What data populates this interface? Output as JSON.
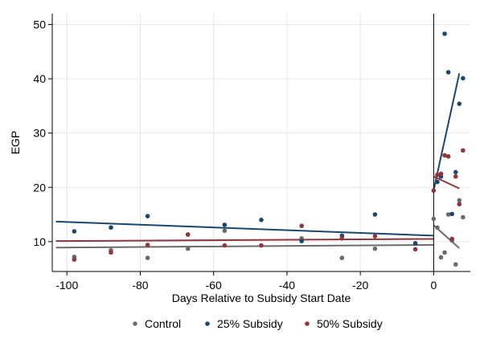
{
  "chart_data": {
    "type": "scatter",
    "title": "",
    "xlabel": "Days Relative to Subsidy Start Date",
    "ylabel": "EGP",
    "xlim": [
      -104,
      10
    ],
    "ylim": [
      4.5,
      52
    ],
    "xticks": [
      -100,
      -80,
      -60,
      -40,
      -20,
      0
    ],
    "xtick_labels": [
      "-100",
      "-80",
      "-60",
      "-40",
      "-20",
      "0"
    ],
    "yticks": [
      10,
      20,
      30,
      40,
      50
    ],
    "ytick_labels": [
      "10",
      "20",
      "30",
      "40",
      "50"
    ],
    "grid": true,
    "vline_x": 0,
    "legend": {
      "placement": "bottom",
      "entries": [
        "Control",
        "25% Subsidy",
        "50% Subsidy"
      ]
    },
    "series": [
      {
        "name": "Control",
        "color": "#6b6b6b",
        "points": [
          [
            -98,
            7.2
          ],
          [
            -88,
            8.4
          ],
          [
            -78,
            7.0
          ],
          [
            -67,
            8.7
          ],
          [
            -57,
            12.0
          ],
          [
            -36,
            10.6
          ],
          [
            -25,
            7.0
          ],
          [
            -16,
            8.7
          ],
          [
            0,
            14.2
          ],
          [
            1,
            12.6
          ],
          [
            2,
            7.1
          ],
          [
            3,
            8.0
          ],
          [
            4,
            15.0
          ],
          [
            5,
            10.2
          ],
          [
            6,
            5.8
          ],
          [
            7,
            17.6
          ],
          [
            8,
            14.5
          ]
        ],
        "fit": [
          [
            [
              -103,
              8.9
            ],
            [
              0,
              9.4
            ]
          ],
          [
            [
              0,
              13.0
            ],
            [
              7,
              8.8
            ]
          ]
        ]
      },
      {
        "name": "25% Subsidy",
        "color": "#1a476f",
        "points": [
          [
            -98,
            11.9
          ],
          [
            -88,
            12.6
          ],
          [
            -78,
            14.7
          ],
          [
            -67,
            11.3
          ],
          [
            -57,
            13.1
          ],
          [
            -47,
            14.0
          ],
          [
            -36,
            10.1
          ],
          [
            -25,
            11.1
          ],
          [
            -16,
            15.0
          ],
          [
            -5,
            9.7
          ],
          [
            1,
            21.0
          ],
          [
            2,
            22.0
          ],
          [
            3,
            48.3
          ],
          [
            4,
            41.2
          ],
          [
            5,
            15.1
          ],
          [
            6,
            22.8
          ],
          [
            7,
            35.4
          ],
          [
            8,
            40.1
          ]
        ],
        "fit": [
          [
            [
              -103,
              13.7
            ],
            [
              0,
              11.1
            ]
          ],
          [
            [
              0,
              19.5
            ],
            [
              7,
              41.0
            ]
          ]
        ]
      },
      {
        "name": "50% Subsidy",
        "color": "#90353b",
        "points": [
          [
            -98,
            6.7
          ],
          [
            -88,
            8.0
          ],
          [
            -78,
            9.4
          ],
          [
            -67,
            11.3
          ],
          [
            -57,
            9.3
          ],
          [
            -47,
            9.3
          ],
          [
            -36,
            12.9
          ],
          [
            -25,
            10.6
          ],
          [
            -16,
            11.0
          ],
          [
            -5,
            8.6
          ],
          [
            0,
            19.4
          ],
          [
            1,
            22.3
          ],
          [
            2,
            22.5
          ],
          [
            3,
            25.9
          ],
          [
            4,
            25.7
          ],
          [
            5,
            10.5
          ],
          [
            6,
            22.0
          ],
          [
            7,
            16.9
          ],
          [
            8,
            26.8
          ]
        ],
        "fit": [
          [
            [
              -103,
              10.1
            ],
            [
              0,
              10.5
            ]
          ],
          [
            [
              0,
              22.0
            ],
            [
              7,
              19.8
            ]
          ]
        ]
      }
    ]
  }
}
